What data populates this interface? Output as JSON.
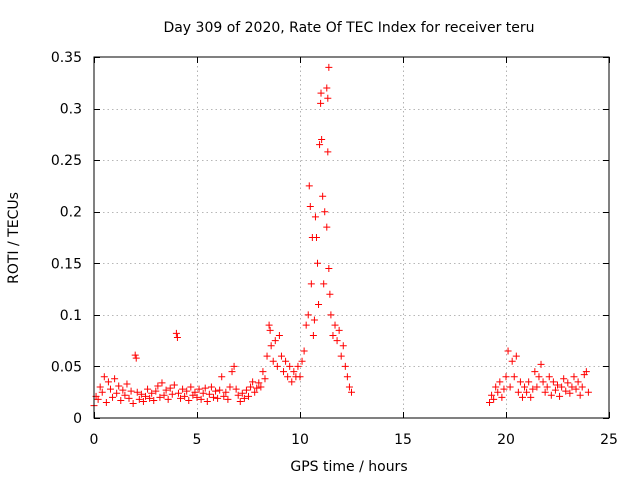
{
  "chart_data": {
    "type": "scatter",
    "title": "Day 309 of 2020, Rate Of TEC Index for receiver teru",
    "xlabel": "GPS time / hours",
    "ylabel": "ROTI / TECUs",
    "xlim": [
      0,
      25
    ],
    "ylim": [
      0,
      0.35
    ],
    "xticks": [
      0,
      5,
      10,
      15,
      20,
      25
    ],
    "xtick_labels": [
      "0",
      "5",
      "10",
      "15",
      "20",
      "25"
    ],
    "yticks": [
      0,
      0.05,
      0.1,
      0.15,
      0.2,
      0.25,
      0.3,
      0.35
    ],
    "ytick_labels": [
      "0",
      "0.05",
      "0.1",
      "0.15",
      "0.2",
      "0.25",
      "0.3",
      "0.35"
    ],
    "grid": true,
    "marker": "+",
    "color": "#ff0000",
    "series": [
      {
        "name": "ROTI",
        "points": [
          [
            0.0,
            0.012
          ],
          [
            0.1,
            0.021
          ],
          [
            0.2,
            0.018
          ],
          [
            0.3,
            0.03
          ],
          [
            0.4,
            0.025
          ],
          [
            0.5,
            0.04
          ],
          [
            0.6,
            0.015
          ],
          [
            0.7,
            0.035
          ],
          [
            0.8,
            0.028
          ],
          [
            0.9,
            0.02
          ],
          [
            1.0,
            0.038
          ],
          [
            1.1,
            0.024
          ],
          [
            1.2,
            0.031
          ],
          [
            1.3,
            0.017
          ],
          [
            1.4,
            0.027
          ],
          [
            1.5,
            0.022
          ],
          [
            1.6,
            0.033
          ],
          [
            1.7,
            0.019
          ],
          [
            1.8,
            0.026
          ],
          [
            1.9,
            0.014
          ],
          [
            2.0,
            0.061
          ],
          [
            2.05,
            0.058
          ],
          [
            2.1,
            0.025
          ],
          [
            2.2,
            0.018
          ],
          [
            2.3,
            0.023
          ],
          [
            2.4,
            0.016
          ],
          [
            2.5,
            0.021
          ],
          [
            2.6,
            0.028
          ],
          [
            2.7,
            0.019
          ],
          [
            2.8,
            0.024
          ],
          [
            2.9,
            0.017
          ],
          [
            3.0,
            0.026
          ],
          [
            3.1,
            0.031
          ],
          [
            3.2,
            0.02
          ],
          [
            3.3,
            0.034
          ],
          [
            3.4,
            0.022
          ],
          [
            3.5,
            0.027
          ],
          [
            3.6,
            0.018
          ],
          [
            3.7,
            0.029
          ],
          [
            3.8,
            0.023
          ],
          [
            3.9,
            0.032
          ],
          [
            4.0,
            0.082
          ],
          [
            4.05,
            0.078
          ],
          [
            4.1,
            0.024
          ],
          [
            4.2,
            0.019
          ],
          [
            4.3,
            0.028
          ],
          [
            4.4,
            0.021
          ],
          [
            4.5,
            0.026
          ],
          [
            4.6,
            0.017
          ],
          [
            4.7,
            0.03
          ],
          [
            4.8,
            0.022
          ],
          [
            4.9,
            0.025
          ],
          [
            5.0,
            0.02
          ],
          [
            5.1,
            0.028
          ],
          [
            5.2,
            0.018
          ],
          [
            5.3,
            0.024
          ],
          [
            5.4,
            0.029
          ],
          [
            5.5,
            0.016
          ],
          [
            5.6,
            0.023
          ],
          [
            5.7,
            0.03
          ],
          [
            5.8,
            0.02
          ],
          [
            5.9,
            0.026
          ],
          [
            6.0,
            0.019
          ],
          [
            6.1,
            0.027
          ],
          [
            6.2,
            0.04
          ],
          [
            6.3,
            0.021
          ],
          [
            6.4,
            0.025
          ],
          [
            6.5,
            0.018
          ],
          [
            6.6,
            0.03
          ],
          [
            6.7,
            0.045
          ],
          [
            6.8,
            0.05
          ],
          [
            6.9,
            0.028
          ],
          [
            7.0,
            0.022
          ],
          [
            7.1,
            0.016
          ],
          [
            7.2,
            0.024
          ],
          [
            7.3,
            0.019
          ],
          [
            7.4,
            0.027
          ],
          [
            7.5,
            0.021
          ],
          [
            7.6,
            0.03
          ],
          [
            7.7,
            0.035
          ],
          [
            7.8,
            0.025
          ],
          [
            7.9,
            0.029
          ],
          [
            8.0,
            0.034
          ],
          [
            8.1,
            0.03
          ],
          [
            8.2,
            0.045
          ],
          [
            8.3,
            0.038
          ],
          [
            8.4,
            0.06
          ],
          [
            8.5,
            0.09
          ],
          [
            8.55,
            0.085
          ],
          [
            8.6,
            0.07
          ],
          [
            8.7,
            0.055
          ],
          [
            8.8,
            0.075
          ],
          [
            8.9,
            0.05
          ],
          [
            9.0,
            0.08
          ],
          [
            9.1,
            0.06
          ],
          [
            9.2,
            0.045
          ],
          [
            9.3,
            0.055
          ],
          [
            9.4,
            0.04
          ],
          [
            9.5,
            0.05
          ],
          [
            9.6,
            0.035
          ],
          [
            9.7,
            0.045
          ],
          [
            9.8,
            0.04
          ],
          [
            9.9,
            0.05
          ],
          [
            10.0,
            0.04
          ],
          [
            10.1,
            0.055
          ],
          [
            10.2,
            0.065
          ],
          [
            10.3,
            0.09
          ],
          [
            10.4,
            0.1
          ],
          [
            10.45,
            0.225
          ],
          [
            10.5,
            0.205
          ],
          [
            10.55,
            0.13
          ],
          [
            10.6,
            0.175
          ],
          [
            10.65,
            0.08
          ],
          [
            10.7,
            0.095
          ],
          [
            10.75,
            0.195
          ],
          [
            10.8,
            0.175
          ],
          [
            10.85,
            0.15
          ],
          [
            10.9,
            0.11
          ],
          [
            10.95,
            0.265
          ],
          [
            11.0,
            0.305
          ],
          [
            11.02,
            0.315
          ],
          [
            11.05,
            0.27
          ],
          [
            11.1,
            0.215
          ],
          [
            11.15,
            0.13
          ],
          [
            11.2,
            0.2
          ],
          [
            11.3,
            0.32
          ],
          [
            11.35,
            0.31
          ],
          [
            11.4,
            0.34
          ],
          [
            11.35,
            0.258
          ],
          [
            11.3,
            0.185
          ],
          [
            11.4,
            0.145
          ],
          [
            11.45,
            0.12
          ],
          [
            11.5,
            0.1
          ],
          [
            11.6,
            0.08
          ],
          [
            11.7,
            0.09
          ],
          [
            11.8,
            0.075
          ],
          [
            11.9,
            0.085
          ],
          [
            12.0,
            0.06
          ],
          [
            12.1,
            0.07
          ],
          [
            12.2,
            0.05
          ],
          [
            12.3,
            0.04
          ],
          [
            12.4,
            0.03
          ],
          [
            12.5,
            0.025
          ],
          [
            19.2,
            0.015
          ],
          [
            19.3,
            0.022
          ],
          [
            19.4,
            0.018
          ],
          [
            19.5,
            0.03
          ],
          [
            19.6,
            0.025
          ],
          [
            19.7,
            0.035
          ],
          [
            19.8,
            0.02
          ],
          [
            19.9,
            0.028
          ],
          [
            20.0,
            0.04
          ],
          [
            20.1,
            0.065
          ],
          [
            20.2,
            0.03
          ],
          [
            20.3,
            0.055
          ],
          [
            20.4,
            0.04
          ],
          [
            20.5,
            0.06
          ],
          [
            20.6,
            0.025
          ],
          [
            20.7,
            0.035
          ],
          [
            20.8,
            0.02
          ],
          [
            20.9,
            0.03
          ],
          [
            21.0,
            0.025
          ],
          [
            21.1,
            0.035
          ],
          [
            21.2,
            0.02
          ],
          [
            21.3,
            0.028
          ],
          [
            21.4,
            0.045
          ],
          [
            21.5,
            0.03
          ],
          [
            21.6,
            0.04
          ],
          [
            21.7,
            0.052
          ],
          [
            21.8,
            0.035
          ],
          [
            21.9,
            0.025
          ],
          [
            22.0,
            0.03
          ],
          [
            22.1,
            0.04
          ],
          [
            22.2,
            0.022
          ],
          [
            22.3,
            0.035
          ],
          [
            22.4,
            0.027
          ],
          [
            22.5,
            0.032
          ],
          [
            22.6,
            0.021
          ],
          [
            22.7,
            0.03
          ],
          [
            22.8,
            0.038
          ],
          [
            22.9,
            0.026
          ],
          [
            23.0,
            0.034
          ],
          [
            23.1,
            0.024
          ],
          [
            23.2,
            0.03
          ],
          [
            23.3,
            0.04
          ],
          [
            23.4,
            0.028
          ],
          [
            23.5,
            0.035
          ],
          [
            23.6,
            0.022
          ],
          [
            23.7,
            0.03
          ],
          [
            23.8,
            0.042
          ],
          [
            23.9,
            0.045
          ],
          [
            24.0,
            0.025
          ]
        ]
      }
    ]
  }
}
